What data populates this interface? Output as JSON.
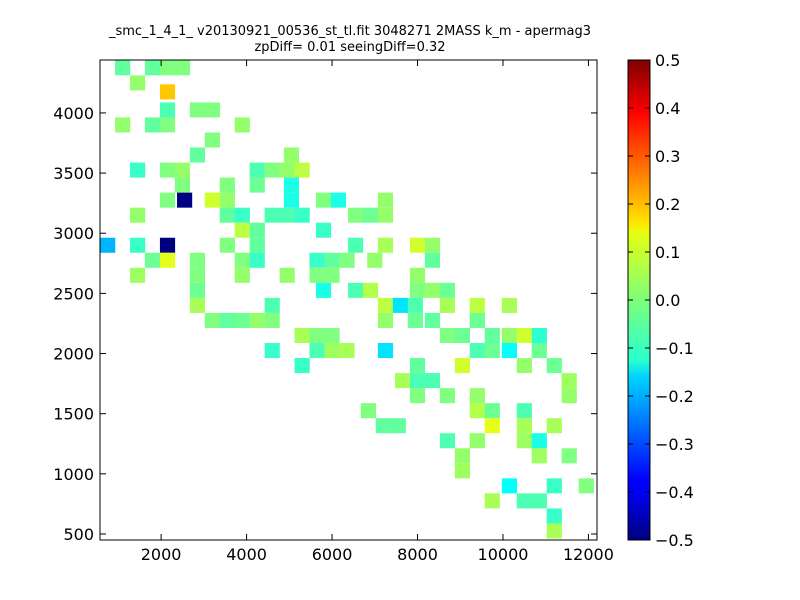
{
  "chart_data": {
    "type": "heatmap",
    "title_line1": "_smc_1_4_1_ v20130921_00536_st_tl.fit 3048271 2MASS k_m - apermag3",
    "title_line2": "zpDiff= 0.01 seeingDiff=0.32",
    "xlabel": "",
    "ylabel": "",
    "xlim": [
      570,
      12200
    ],
    "ylim": [
      450,
      4440
    ],
    "x_ticks": [
      2000,
      4000,
      6000,
      8000,
      10000,
      12000
    ],
    "y_ticks": [
      500,
      1000,
      1500,
      2000,
      2500,
      3000,
      3500,
      4000
    ],
    "cell_width": 355,
    "cell_height": 125,
    "colorbar": {
      "colormap": "jet",
      "range": [
        -0.5,
        0.5
      ],
      "ticks": [
        0.5,
        0.4,
        0.3,
        0.2,
        0.1,
        0.0,
        -0.1,
        -0.2,
        -0.3,
        -0.4,
        -0.5
      ],
      "tick_labels": [
        "0.5",
        "0.4",
        "0.3",
        "0.2",
        "0.1",
        "0.0",
        "−0.1",
        "−0.2",
        "−0.3",
        "−0.4",
        "−0.5"
      ]
    },
    "grid": false,
    "cells": [
      {
        "x": 1100,
        "y": 4375,
        "v": -0.03
      },
      {
        "x": 1800,
        "y": 4375,
        "v": -0.03
      },
      {
        "x": 2150,
        "y": 4375,
        "v": 0.0
      },
      {
        "x": 2500,
        "y": 4375,
        "v": 0.0
      },
      {
        "x": 1450,
        "y": 4250,
        "v": 0.02
      },
      {
        "x": 2150,
        "y": 4175,
        "v": 0.18
      },
      {
        "x": 2150,
        "y": 4025,
        "v": -0.05
      },
      {
        "x": 2850,
        "y": 4025,
        "v": 0.0
      },
      {
        "x": 3200,
        "y": 4025,
        "v": 0.0
      },
      {
        "x": 1100,
        "y": 3900,
        "v": 0.02
      },
      {
        "x": 1800,
        "y": 3900,
        "v": -0.03
      },
      {
        "x": 2150,
        "y": 3900,
        "v": 0.0
      },
      {
        "x": 3900,
        "y": 3900,
        "v": 0.02
      },
      {
        "x": 3200,
        "y": 3775,
        "v": 0.0
      },
      {
        "x": 2850,
        "y": 3650,
        "v": -0.03
      },
      {
        "x": 5050,
        "y": 3650,
        "v": 0.02
      },
      {
        "x": 1450,
        "y": 3525,
        "v": -0.07
      },
      {
        "x": 2150,
        "y": 3525,
        "v": 0.0
      },
      {
        "x": 2500,
        "y": 3525,
        "v": 0.02
      },
      {
        "x": 4250,
        "y": 3525,
        "v": -0.05
      },
      {
        "x": 4600,
        "y": 3525,
        "v": 0.0
      },
      {
        "x": 4950,
        "y": 3525,
        "v": 0.02
      },
      {
        "x": 5300,
        "y": 3525,
        "v": 0.06
      },
      {
        "x": 2500,
        "y": 3400,
        "v": 0.0
      },
      {
        "x": 3550,
        "y": 3400,
        "v": 0.0
      },
      {
        "x": 4250,
        "y": 3400,
        "v": -0.02
      },
      {
        "x": 5050,
        "y": 3400,
        "v": -0.1
      },
      {
        "x": 2150,
        "y": 3275,
        "v": 0.0
      },
      {
        "x": 2550,
        "y": 3275,
        "v": -0.5
      },
      {
        "x": 3200,
        "y": 3275,
        "v": 0.08
      },
      {
        "x": 3550,
        "y": 3275,
        "v": 0.02
      },
      {
        "x": 5050,
        "y": 3275,
        "v": -0.1
      },
      {
        "x": 5800,
        "y": 3275,
        "v": 0.0
      },
      {
        "x": 6150,
        "y": 3275,
        "v": -0.1
      },
      {
        "x": 7250,
        "y": 3275,
        "v": 0.02
      },
      {
        "x": 1450,
        "y": 3150,
        "v": 0.02
      },
      {
        "x": 3550,
        "y": 3150,
        "v": -0.03
      },
      {
        "x": 3900,
        "y": 3150,
        "v": -0.07
      },
      {
        "x": 4600,
        "y": 3150,
        "v": -0.05
      },
      {
        "x": 4950,
        "y": 3150,
        "v": -0.05
      },
      {
        "x": 5300,
        "y": 3150,
        "v": -0.07
      },
      {
        "x": 6550,
        "y": 3150,
        "v": 0.0
      },
      {
        "x": 6900,
        "y": 3150,
        "v": -0.02
      },
      {
        "x": 7250,
        "y": 3150,
        "v": 0.02
      },
      {
        "x": 3900,
        "y": 3025,
        "v": 0.06
      },
      {
        "x": 4250,
        "y": 3025,
        "v": -0.03
      },
      {
        "x": 5800,
        "y": 3025,
        "v": -0.07
      },
      {
        "x": 750,
        "y": 2900,
        "v": -0.2
      },
      {
        "x": 1450,
        "y": 2900,
        "v": -0.07
      },
      {
        "x": 2150,
        "y": 2900,
        "v": -0.5
      },
      {
        "x": 3550,
        "y": 2900,
        "v": 0.0
      },
      {
        "x": 4250,
        "y": 2900,
        "v": -0.03
      },
      {
        "x": 6550,
        "y": 2900,
        "v": -0.05
      },
      {
        "x": 7250,
        "y": 2900,
        "v": 0.04
      },
      {
        "x": 8000,
        "y": 2900,
        "v": 0.08
      },
      {
        "x": 8350,
        "y": 2900,
        "v": 0.02
      },
      {
        "x": 1800,
        "y": 2775,
        "v": -0.02
      },
      {
        "x": 2150,
        "y": 2775,
        "v": 0.1
      },
      {
        "x": 2850,
        "y": 2775,
        "v": 0.0
      },
      {
        "x": 3900,
        "y": 2775,
        "v": 0.0
      },
      {
        "x": 4250,
        "y": 2775,
        "v": -0.07
      },
      {
        "x": 5650,
        "y": 2775,
        "v": -0.07
      },
      {
        "x": 6000,
        "y": 2775,
        "v": -0.03
      },
      {
        "x": 6350,
        "y": 2775,
        "v": 0.0
      },
      {
        "x": 7000,
        "y": 2775,
        "v": 0.02
      },
      {
        "x": 8350,
        "y": 2775,
        "v": -0.03
      },
      {
        "x": 1450,
        "y": 2650,
        "v": 0.03
      },
      {
        "x": 2850,
        "y": 2650,
        "v": 0.0
      },
      {
        "x": 3900,
        "y": 2650,
        "v": 0.02
      },
      {
        "x": 4950,
        "y": 2650,
        "v": 0.02
      },
      {
        "x": 5650,
        "y": 2650,
        "v": 0.0
      },
      {
        "x": 6000,
        "y": 2650,
        "v": 0.0
      },
      {
        "x": 8000,
        "y": 2650,
        "v": 0.02
      },
      {
        "x": 2850,
        "y": 2525,
        "v": -0.02
      },
      {
        "x": 5800,
        "y": 2525,
        "v": -0.1
      },
      {
        "x": 6550,
        "y": 2525,
        "v": -0.05
      },
      {
        "x": 6900,
        "y": 2525,
        "v": 0.05
      },
      {
        "x": 8000,
        "y": 2525,
        "v": 0.0
      },
      {
        "x": 8350,
        "y": 2525,
        "v": 0.02
      },
      {
        "x": 8700,
        "y": 2525,
        "v": -0.02
      },
      {
        "x": 2850,
        "y": 2400,
        "v": 0.04
      },
      {
        "x": 4600,
        "y": 2400,
        "v": -0.05
      },
      {
        "x": 7250,
        "y": 2400,
        "v": 0.06
      },
      {
        "x": 7600,
        "y": 2400,
        "v": -0.15
      },
      {
        "x": 7950,
        "y": 2400,
        "v": -0.05
      },
      {
        "x": 8700,
        "y": 2400,
        "v": 0.04
      },
      {
        "x": 9400,
        "y": 2400,
        "v": 0.06
      },
      {
        "x": 10150,
        "y": 2400,
        "v": 0.04
      },
      {
        "x": 3200,
        "y": 2275,
        "v": 0.0
      },
      {
        "x": 3550,
        "y": 2275,
        "v": -0.03
      },
      {
        "x": 3900,
        "y": 2275,
        "v": -0.02
      },
      {
        "x": 4250,
        "y": 2275,
        "v": 0.02
      },
      {
        "x": 4600,
        "y": 2275,
        "v": 0.0
      },
      {
        "x": 7250,
        "y": 2275,
        "v": 0.02
      },
      {
        "x": 7950,
        "y": 2275,
        "v": -0.02
      },
      {
        "x": 8350,
        "y": 2275,
        "v": -0.03
      },
      {
        "x": 9400,
        "y": 2275,
        "v": -0.02
      },
      {
        "x": 5300,
        "y": 2150,
        "v": 0.04
      },
      {
        "x": 5650,
        "y": 2150,
        "v": 0.0
      },
      {
        "x": 6000,
        "y": 2150,
        "v": 0.0
      },
      {
        "x": 8700,
        "y": 2150,
        "v": 0.0
      },
      {
        "x": 9050,
        "y": 2150,
        "v": -0.02
      },
      {
        "x": 9750,
        "y": 2150,
        "v": -0.03
      },
      {
        "x": 10150,
        "y": 2150,
        "v": 0.02
      },
      {
        "x": 10500,
        "y": 2150,
        "v": 0.08
      },
      {
        "x": 10850,
        "y": 2150,
        "v": -0.08
      },
      {
        "x": 4600,
        "y": 2025,
        "v": -0.07
      },
      {
        "x": 5650,
        "y": 2025,
        "v": -0.05
      },
      {
        "x": 6000,
        "y": 2025,
        "v": 0.03
      },
      {
        "x": 6350,
        "y": 2025,
        "v": 0.04
      },
      {
        "x": 7250,
        "y": 2025,
        "v": -0.15
      },
      {
        "x": 9400,
        "y": 2025,
        "v": -0.05
      },
      {
        "x": 9750,
        "y": 2025,
        "v": -0.02
      },
      {
        "x": 10150,
        "y": 2025,
        "v": -0.12
      },
      {
        "x": 10850,
        "y": 2025,
        "v": -0.02
      },
      {
        "x": 5300,
        "y": 1900,
        "v": -0.07
      },
      {
        "x": 8000,
        "y": 1900,
        "v": -0.03
      },
      {
        "x": 9050,
        "y": 1900,
        "v": 0.08
      },
      {
        "x": 10500,
        "y": 1900,
        "v": 0.02
      },
      {
        "x": 11200,
        "y": 1900,
        "v": -0.02
      },
      {
        "x": 7650,
        "y": 1775,
        "v": 0.04
      },
      {
        "x": 8000,
        "y": 1775,
        "v": -0.05
      },
      {
        "x": 8350,
        "y": 1775,
        "v": -0.05
      },
      {
        "x": 11550,
        "y": 1775,
        "v": 0.03
      },
      {
        "x": 8000,
        "y": 1650,
        "v": 0.0
      },
      {
        "x": 8700,
        "y": 1650,
        "v": 0.0
      },
      {
        "x": 9400,
        "y": 1650,
        "v": 0.02
      },
      {
        "x": 11550,
        "y": 1650,
        "v": 0.02
      },
      {
        "x": 6850,
        "y": 1525,
        "v": 0.0
      },
      {
        "x": 9400,
        "y": 1525,
        "v": 0.05
      },
      {
        "x": 9750,
        "y": 1525,
        "v": -0.02
      },
      {
        "x": 10500,
        "y": 1525,
        "v": -0.05
      },
      {
        "x": 7200,
        "y": 1400,
        "v": -0.03
      },
      {
        "x": 7550,
        "y": 1400,
        "v": -0.03
      },
      {
        "x": 9750,
        "y": 1400,
        "v": 0.1
      },
      {
        "x": 10500,
        "y": 1400,
        "v": 0.04
      },
      {
        "x": 11200,
        "y": 1400,
        "v": 0.04
      },
      {
        "x": 8700,
        "y": 1275,
        "v": -0.05
      },
      {
        "x": 9400,
        "y": 1275,
        "v": 0.02
      },
      {
        "x": 10500,
        "y": 1275,
        "v": 0.03
      },
      {
        "x": 10850,
        "y": 1275,
        "v": -0.1
      },
      {
        "x": 9050,
        "y": 1150,
        "v": 0.02
      },
      {
        "x": 10850,
        "y": 1150,
        "v": 0.03
      },
      {
        "x": 11550,
        "y": 1150,
        "v": 0.0
      },
      {
        "x": 9050,
        "y": 1025,
        "v": 0.03
      },
      {
        "x": 10150,
        "y": 900,
        "v": -0.12
      },
      {
        "x": 11200,
        "y": 900,
        "v": -0.07
      },
      {
        "x": 11950,
        "y": 900,
        "v": 0.0
      },
      {
        "x": 9750,
        "y": 775,
        "v": 0.04
      },
      {
        "x": 10500,
        "y": 775,
        "v": -0.05
      },
      {
        "x": 10850,
        "y": 775,
        "v": -0.05
      },
      {
        "x": 11200,
        "y": 650,
        "v": -0.07
      },
      {
        "x": 11200,
        "y": 525,
        "v": 0.04
      }
    ]
  }
}
